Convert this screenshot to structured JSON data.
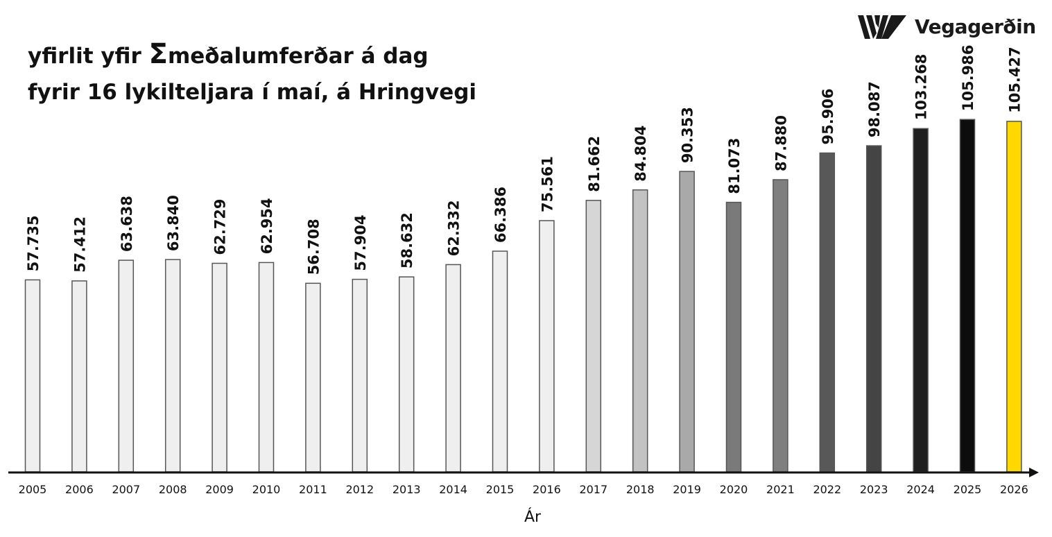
{
  "logo": {
    "name": "Vegagerðin",
    "icon": "vegagerdin-stripes-logo-icon"
  },
  "title": {
    "line1_pre": "yfirlit yfir ",
    "symbol": "Σ",
    "line1_post": "meðalumferðar á dag",
    "line2": "fyrir 16 lykilteljara í maí, á Hringvegi"
  },
  "chart_data": {
    "type": "bar",
    "title": "yfirlit yfir Σmeðalumferðar á dag fyrir 16 lykilteljara í maí, á Hringvegi",
    "xlabel": "Ár",
    "ylabel": "",
    "ylim": [
      0,
      110000
    ],
    "grid": false,
    "legend": "none",
    "categories": [
      "2005",
      "2006",
      "2007",
      "2008",
      "2009",
      "2010",
      "2011",
      "2012",
      "2013",
      "2014",
      "2015",
      "2016",
      "2017",
      "2018",
      "2019",
      "2020",
      "2021",
      "2022",
      "2023",
      "2024",
      "2025",
      "2026"
    ],
    "values": [
      57735,
      57412,
      63638,
      63840,
      62729,
      62954,
      56708,
      57904,
      58632,
      62332,
      66386,
      75561,
      81662,
      84804,
      90353,
      81073,
      87880,
      95906,
      98087,
      103268,
      105986,
      105427
    ],
    "value_labels": [
      "57.735",
      "57.412",
      "63.638",
      "63.840",
      "62.729",
      "62.954",
      "56.708",
      "57.904",
      "58.632",
      "62.332",
      "66.386",
      "75.561",
      "81.662",
      "84.804",
      "90.353",
      "81.073",
      "87.880",
      "95.906",
      "98.087",
      "103.268",
      "105.986",
      "105.427"
    ],
    "bar_colors": [
      "#efefef",
      "#efefef",
      "#efefef",
      "#efefef",
      "#efefef",
      "#efefef",
      "#efefef",
      "#efefef",
      "#efefef",
      "#efefef",
      "#efefef",
      "#efefef",
      "#d6d6d6",
      "#c2c2c2",
      "#a9a9a9",
      "#7a7a7a",
      "#7f7f7f",
      "#585858",
      "#444444",
      "#1f1f1f",
      "#0d0d0d",
      "#ffd800"
    ],
    "bar_stroke": "#555555",
    "axis_color": "#111111"
  }
}
